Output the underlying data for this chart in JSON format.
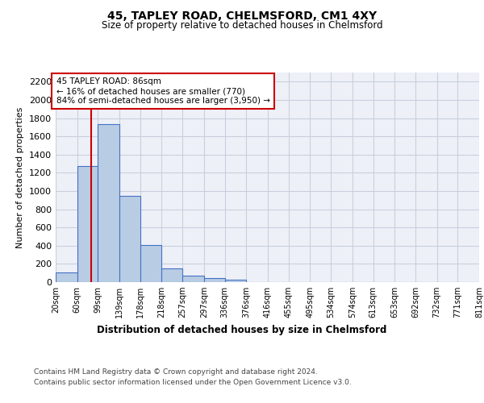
{
  "title1": "45, TAPLEY ROAD, CHELMSFORD, CM1 4XY",
  "title2": "Size of property relative to detached houses in Chelmsford",
  "xlabel": "Distribution of detached houses by size in Chelmsford",
  "ylabel": "Number of detached properties",
  "bar_values": [
    110,
    1270,
    1730,
    950,
    410,
    150,
    75,
    40,
    25,
    0,
    0,
    0,
    0,
    0,
    0,
    0,
    0,
    0,
    0,
    0
  ],
  "bin_edges": [
    20,
    60,
    99,
    139,
    178,
    218,
    257,
    297,
    336,
    376,
    416,
    455,
    495,
    534,
    574,
    613,
    653,
    692,
    732,
    771,
    811
  ],
  "tick_labels": [
    "20sqm",
    "60sqm",
    "99sqm",
    "139sqm",
    "178sqm",
    "218sqm",
    "257sqm",
    "297sqm",
    "336sqm",
    "376sqm",
    "416sqm",
    "455sqm",
    "495sqm",
    "534sqm",
    "574sqm",
    "613sqm",
    "653sqm",
    "692sqm",
    "732sqm",
    "771sqm",
    "811sqm"
  ],
  "bar_color": "#b8cce4",
  "bar_edgecolor": "#4472c4",
  "bar_linewidth": 0.8,
  "vline_x": 86,
  "vline_color": "#cc0000",
  "annotation_text": "45 TAPLEY ROAD: 86sqm\n← 16% of detached houses are smaller (770)\n84% of semi-detached houses are larger (3,950) →",
  "annotation_box_color": "#cc0000",
  "ylim": [
    0,
    2300
  ],
  "yticks": [
    0,
    200,
    400,
    600,
    800,
    1000,
    1200,
    1400,
    1600,
    1800,
    2000,
    2200
  ],
  "grid_color": "#c8d0dc",
  "bg_color": "#eef0f8",
  "footer1": "Contains HM Land Registry data © Crown copyright and database right 2024.",
  "footer2": "Contains public sector information licensed under the Open Government Licence v3.0."
}
